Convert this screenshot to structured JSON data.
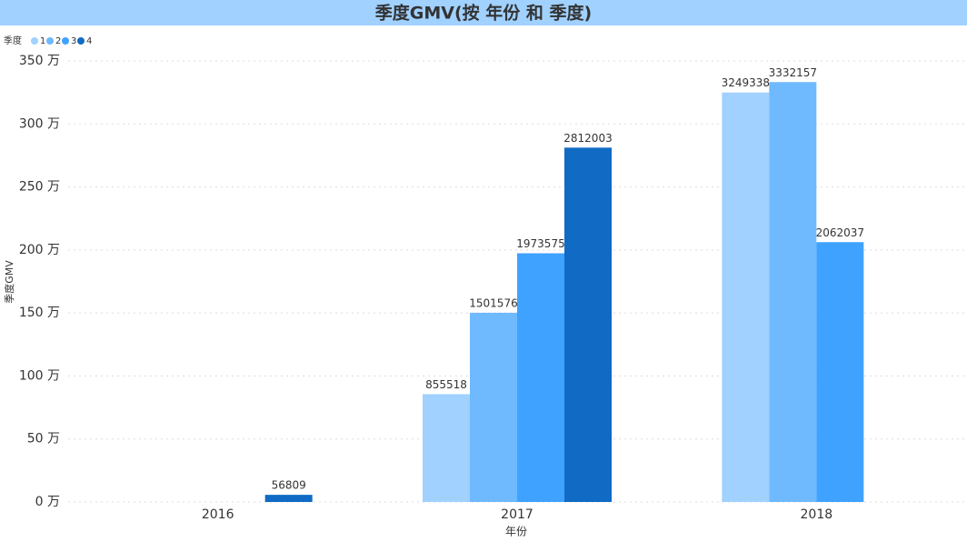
{
  "chart_data": {
    "type": "bar",
    "title": "季度GMV(按 年份 和 季度)",
    "legend_title": "季度",
    "x_label": "年份",
    "y_label": "季度GMV",
    "categories": [
      "2016",
      "2017",
      "2018"
    ],
    "series": [
      {
        "name": "1",
        "color": "#a0d1ff",
        "values": [
          null,
          855518,
          3249338
        ]
      },
      {
        "name": "2",
        "color": "#6fb9ff",
        "values": [
          null,
          1501576,
          3332157
        ]
      },
      {
        "name": "3",
        "color": "#3fa2ff",
        "values": [
          null,
          1973575,
          2062037
        ]
      },
      {
        "name": "4",
        "color": "#116bc4",
        "values": [
          56809,
          2812003,
          null
        ]
      }
    ],
    "ylim": [
      0,
      3500000
    ],
    "yticks": [
      {
        "value": 0,
        "label": "0 万"
      },
      {
        "value": 500000,
        "label": "50 万"
      },
      {
        "value": 1000000,
        "label": "100 万"
      },
      {
        "value": 1500000,
        "label": "150 万"
      },
      {
        "value": 2000000,
        "label": "200 万"
      },
      {
        "value": 2500000,
        "label": "250 万"
      },
      {
        "value": 3000000,
        "label": "300 万"
      },
      {
        "value": 3500000,
        "label": "350 万"
      }
    ],
    "grid": true,
    "legend": "top-left"
  }
}
